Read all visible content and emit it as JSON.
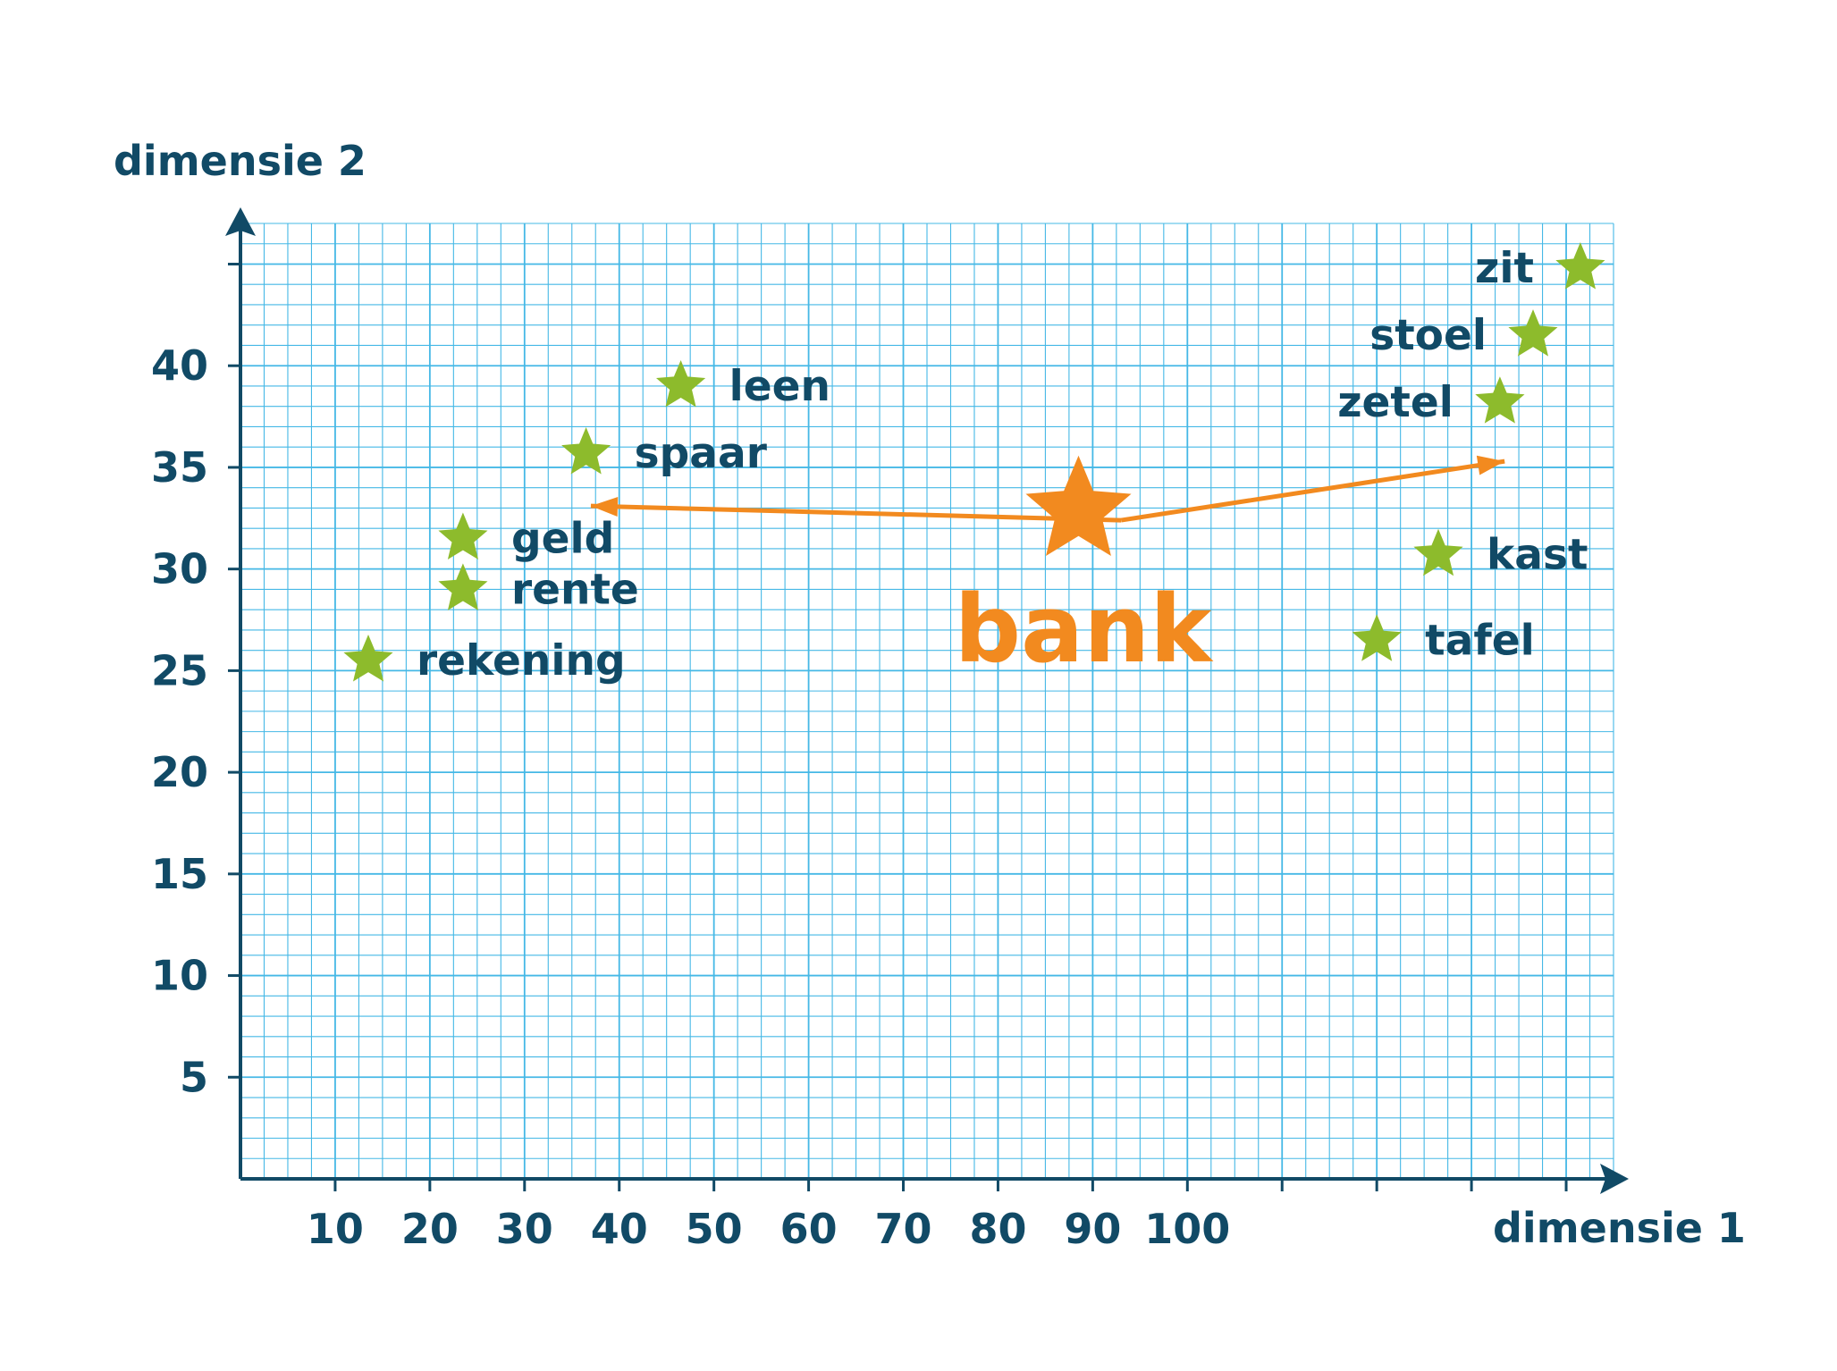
{
  "chart_data": {
    "type": "scatter",
    "xlabel": "dimensie 1",
    "ylabel": "dimensie 2",
    "xlim": [
      0,
      145
    ],
    "ylim": [
      0,
      47
    ],
    "x_ticks": [
      10,
      20,
      30,
      40,
      50,
      60,
      70,
      80,
      90,
      100
    ],
    "x_unlabeled_ticks": [
      110,
      120,
      130,
      140
    ],
    "y_ticks": [
      5,
      10,
      15,
      20,
      25,
      30,
      35,
      40
    ],
    "y_unlabeled_ticks": [
      45
    ],
    "grid": true,
    "colors": {
      "grid": "#45b8e6",
      "axis": "#114a66",
      "text": "#114a66",
      "point": "#8dbb2c",
      "focus": "#f28a1f"
    },
    "points": [
      {
        "label": "zit",
        "x": 141.5,
        "y": 44.8
      },
      {
        "label": "stoel",
        "x": 136.5,
        "y": 41.5
      },
      {
        "label": "zetel",
        "x": 133,
        "y": 38.2
      },
      {
        "label": "leen",
        "x": 46.5,
        "y": 39
      },
      {
        "label": "spaar",
        "x": 36.5,
        "y": 35.7
      },
      {
        "label": "geld",
        "x": 23.5,
        "y": 31.5
      },
      {
        "label": "rente",
        "x": 23.5,
        "y": 29
      },
      {
        "label": "rekening",
        "x": 13.5,
        "y": 25.5
      },
      {
        "label": "kast",
        "x": 126.5,
        "y": 30.7
      },
      {
        "label": "tafel",
        "x": 120,
        "y": 26.5
      }
    ],
    "focus_point": {
      "label": "bank",
      "x": 88.5,
      "y": 32.5
    },
    "arrows": [
      {
        "from": [
          93,
          32.4
        ],
        "to": [
          37,
          33.1
        ]
      },
      {
        "from": [
          93,
          32.4
        ],
        "to": [
          133.5,
          35.3
        ]
      }
    ]
  }
}
